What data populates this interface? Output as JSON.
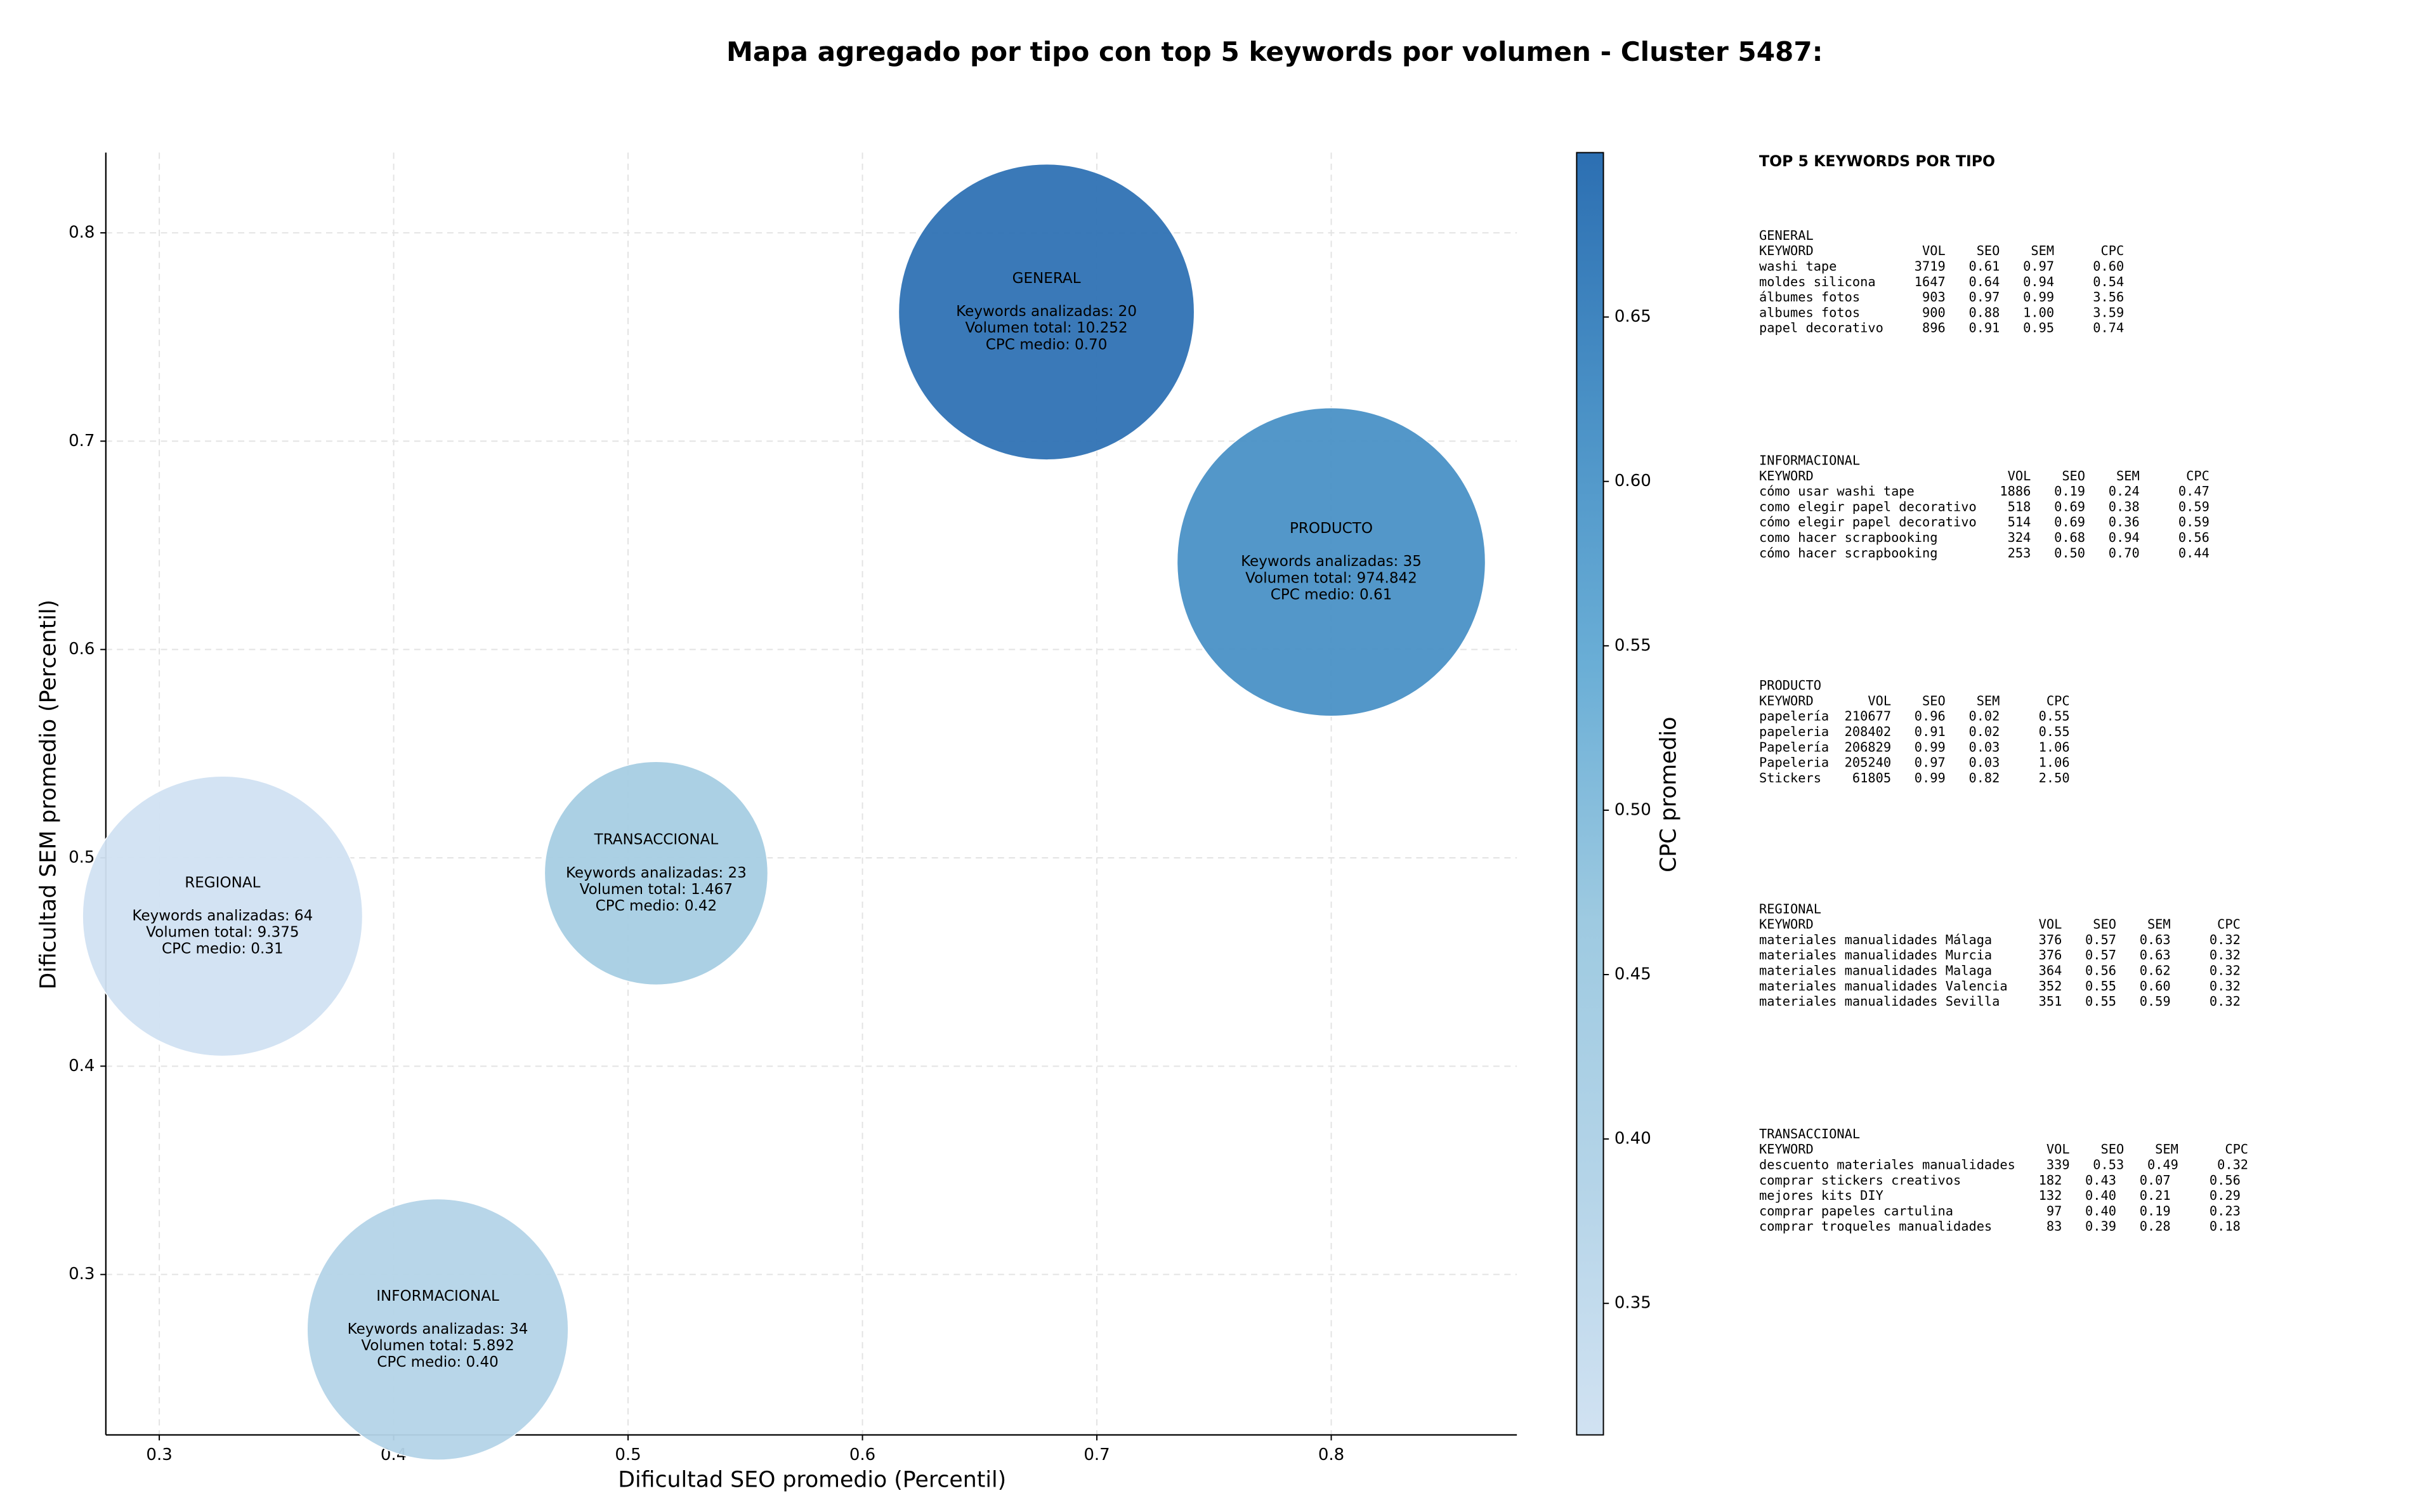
{
  "chart_data": {
    "type": "scatter",
    "title": "Mapa agregado por tipo con top 5 keywords por volumen - Cluster 5487:",
    "x_label": "Dificultad SEO promedio (Percentil)",
    "y_label": "Dificultad SEM promedio (Percentil)",
    "xlim": [
      0.2772,
      0.8792
    ],
    "ylim": [
      0.223,
      0.8385
    ],
    "xticks": [
      0.3,
      0.4,
      0.5,
      0.6,
      0.7,
      0.8
    ],
    "yticks": [
      0.3,
      0.4,
      0.5,
      0.6,
      0.7,
      0.8
    ],
    "grid": true,
    "labels": [
      "GENERAL",
      "PRODUCTO",
      "TRANSACCIONAL",
      "REGIONAL",
      "INFORMACIONAL"
    ],
    "x": [
      0.6785,
      0.8,
      0.512,
      0.327,
      0.4188
    ],
    "y": [
      0.762,
      0.642,
      0.4926,
      0.472,
      0.2736
    ],
    "sizes": [
      8836,
      9604,
      5041,
      7921,
      6889
    ],
    "c": [
      0.7,
      0.61,
      0.42,
      0.31,
      0.4
    ],
    "colors": [
      "#2f72b4",
      "#4a91c6",
      "#a6cde3",
      "#d1e2f2",
      "#b4d4e8"
    ],
    "annotations": [
      [
        "Keywords analizadas: 20",
        "Volumen total: 10.252",
        "CPC medio: 0.70"
      ],
      [
        "Keywords analizadas: 35",
        "Volumen total: 974.842",
        "CPC medio: 0.61"
      ],
      [
        "Keywords analizadas: 23",
        "Volumen total: 1.467",
        "CPC medio: 0.42"
      ],
      [
        "Keywords analizadas: 64",
        "Volumen total: 9.375",
        "CPC medio: 0.31"
      ],
      [
        "Keywords analizadas: 34",
        "Volumen total: 5.892",
        "CPC medio: 0.40"
      ]
    ],
    "colorbar": {
      "label": "CPC promedio",
      "lim": [
        0.31,
        0.7
      ],
      "ticks": [
        0.35,
        {
          "value": 0.4,
          "label": "0.40"
        },
        0.45,
        {
          "value": 0.5,
          "label": "0.50"
        },
        0.55,
        {
          "value": 0.6,
          "label": "0.60"
        },
        0.65
      ],
      "colors": [
        "#d1e2f2",
        "#b4d4e8",
        "#9ecae1",
        "#6aaed6",
        "#4a91c6",
        "#2c6fb2"
      ]
    }
  },
  "panel": {
    "title": "TOP 5 KEYWORDS POR TIPO",
    "sections": [
      {
        "name": "GENERAL",
        "lines": [
          "KEYWORD              VOL    SEO    SEM      CPC",
          "washi tape          3719   0.61   0.97     0.60",
          "moldes silicona     1647   0.64   0.94     0.54",
          "álbumes fotos        903   0.97   0.99     3.56",
          "albumes fotos        900   0.88   1.00     3.59",
          "papel decorativo     896   0.91   0.95     0.74"
        ]
      },
      {
        "name": "INFORMACIONAL",
        "lines": [
          "KEYWORD                         VOL    SEO    SEM      CPC",
          "cómo usar washi tape           1886   0.19   0.24     0.47",
          "como elegir papel decorativo    518   0.69   0.38     0.59",
          "cómo elegir papel decorativo    514   0.69   0.36     0.59",
          "como hacer scrapbooking         324   0.68   0.94     0.56",
          "cómo hacer scrapbooking         253   0.50   0.70     0.44"
        ]
      },
      {
        "name": "PRODUCTO",
        "lines": [
          "KEYWORD       VOL    SEO    SEM      CPC",
          "papelería  210677   0.96   0.02     0.55",
          "papeleria  208402   0.91   0.02     0.55",
          "Papelería  206829   0.99   0.03     1.06",
          "Papeleria  205240   0.97   0.03     1.06",
          "Stickers    61805   0.99   0.82     2.50"
        ]
      },
      {
        "name": "REGIONAL",
        "lines": [
          "KEYWORD                             VOL    SEO    SEM      CPC",
          "materiales manualidades Málaga      376   0.57   0.63     0.32",
          "materiales manualidades Murcia      376   0.57   0.63     0.32",
          "materiales manualidades Malaga      364   0.56   0.62     0.32",
          "materiales manualidades Valencia    352   0.55   0.60     0.32",
          "materiales manualidades Sevilla     351   0.55   0.59     0.32"
        ]
      },
      {
        "name": "TRANSACCIONAL",
        "lines": [
          "KEYWORD                              VOL    SEO    SEM      CPC",
          "descuento materiales manualidades    339   0.53   0.49     0.32",
          "comprar stickers creativos          182   0.43   0.07     0.56",
          "mejores kits DIY                    132   0.40   0.21     0.29",
          "comprar papeles cartulina            97   0.40   0.19     0.23",
          "comprar troqueles manualidades       83   0.39   0.28     0.18"
        ]
      }
    ]
  }
}
